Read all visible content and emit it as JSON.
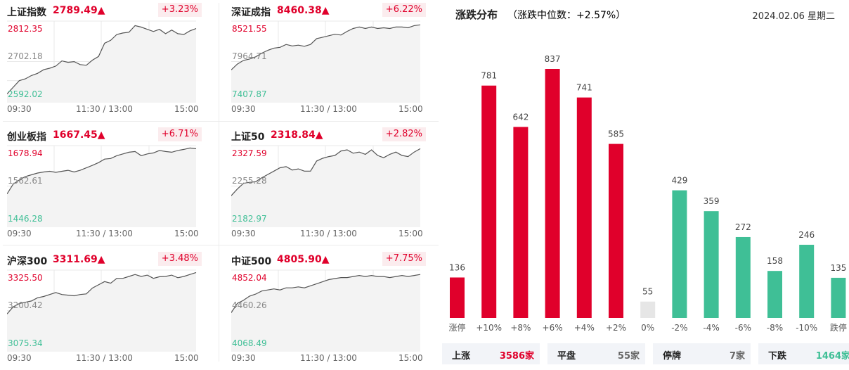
{
  "colors": {
    "up": "#e0002b",
    "down": "#3fbf96",
    "flat_bar": "#e6e6e6",
    "line": "#555555",
    "grid": "#e8e8e8"
  },
  "time_axis": {
    "start": "09:30",
    "mid": "11:30 / 13:00",
    "end": "15:00"
  },
  "indices": [
    {
      "name": "上证指数",
      "price": "2789.49▲",
      "change": "+3.23%",
      "high": "2812.35",
      "mid": "2702.18",
      "low": "2592.02",
      "series": [
        2614,
        2632,
        2650,
        2655,
        2664,
        2670,
        2680,
        2684,
        2690,
        2704,
        2700,
        2702,
        2694,
        2692,
        2706,
        2716,
        2752,
        2760,
        2776,
        2780,
        2782,
        2800,
        2796,
        2790,
        2784,
        2790,
        2778,
        2788,
        2778,
        2776,
        2786,
        2792
      ]
    },
    {
      "name": "深证成指",
      "price": "8460.38▲",
      "change": "+6.22%",
      "high": "8521.55",
      "mid": "7964.71",
      "low": "7407.87",
      "series": [
        7850,
        7930,
        7980,
        8000,
        8030,
        8080,
        8120,
        8150,
        8160,
        8200,
        8180,
        8190,
        8175,
        8200,
        8280,
        8300,
        8320,
        8340,
        8330,
        8380,
        8420,
        8440,
        8420,
        8440,
        8420,
        8430,
        8420,
        8440,
        8440,
        8430,
        8460,
        8470
      ]
    },
    {
      "name": "创业板指",
      "price": "1667.45▲",
      "change": "+6.71%",
      "high": "1678.94",
      "mid": "1562.61",
      "low": "1446.28",
      "series": [
        1540,
        1568,
        1580,
        1590,
        1595,
        1600,
        1603,
        1605,
        1602,
        1605,
        1608,
        1603,
        1608,
        1615,
        1622,
        1630,
        1640,
        1642,
        1650,
        1655,
        1660,
        1662,
        1650,
        1655,
        1658,
        1665,
        1662,
        1660,
        1665,
        1668,
        1672,
        1670
      ]
    },
    {
      "name": "上证50",
      "price": "2318.84▲",
      "change": "+2.82%",
      "high": "2327.59",
      "mid": "2255.28",
      "low": "2182.97",
      "series": [
        2238,
        2250,
        2260,
        2262,
        2263,
        2270,
        2276,
        2282,
        2288,
        2290,
        2284,
        2286,
        2282,
        2282,
        2300,
        2305,
        2308,
        2310,
        2318,
        2320,
        2314,
        2316,
        2312,
        2320,
        2310,
        2306,
        2312,
        2316,
        2310,
        2308,
        2316,
        2322
      ]
    },
    {
      "name": "沪深300",
      "price": "3311.69▲",
      "change": "+3.48%",
      "high": "3325.50",
      "mid": "3200.42",
      "low": "3075.34",
      "series": [
        3190,
        3212,
        3222,
        3226,
        3230,
        3240,
        3244,
        3250,
        3256,
        3250,
        3248,
        3246,
        3250,
        3252,
        3270,
        3280,
        3290,
        3285,
        3300,
        3300,
        3306,
        3312,
        3306,
        3310,
        3300,
        3305,
        3306,
        3310,
        3302,
        3306,
        3312,
        3318
      ]
    },
    {
      "name": "中证500",
      "price": "4805.90▲",
      "change": "+7.75%",
      "high": "4852.04",
      "mid": "4460.26",
      "low": "4068.49",
      "series": [
        4440,
        4530,
        4560,
        4600,
        4620,
        4650,
        4660,
        4670,
        4660,
        4680,
        4680,
        4690,
        4680,
        4700,
        4720,
        4740,
        4760,
        4770,
        4780,
        4780,
        4790,
        4800,
        4790,
        4800,
        4790,
        4790,
        4780,
        4790,
        4800,
        4790,
        4800,
        4810
      ]
    }
  ],
  "distribution": {
    "title": "涨跌分布",
    "median": "（涨跌中位数：+2.57%）",
    "date": "2024.02.06 星期二",
    "summary": [
      {
        "label": "上涨",
        "value": "3586家",
        "tone": "up"
      },
      {
        "label": "平盘",
        "value": "55家",
        "tone": "flat"
      },
      {
        "label": "停牌",
        "value": "7家",
        "tone": "flat"
      },
      {
        "label": "下跌",
        "value": "1464家",
        "tone": "down"
      }
    ]
  },
  "chart_data": {
    "type": "bar",
    "title": "涨跌分布",
    "categories": [
      "涨停",
      "+10%",
      "+8%",
      "+6%",
      "+4%",
      "+2%",
      "0%",
      "-2%",
      "-4%",
      "-6%",
      "-8%",
      "-10%",
      "跌停"
    ],
    "values": [
      136,
      781,
      642,
      837,
      741,
      585,
      55,
      429,
      359,
      272,
      158,
      246,
      135
    ],
    "bar_tones": [
      "up",
      "up",
      "up",
      "up",
      "up",
      "up",
      "flat",
      "down",
      "down",
      "down",
      "down",
      "down",
      "down"
    ],
    "ylim": [
      0,
      837
    ],
    "grid": false
  }
}
